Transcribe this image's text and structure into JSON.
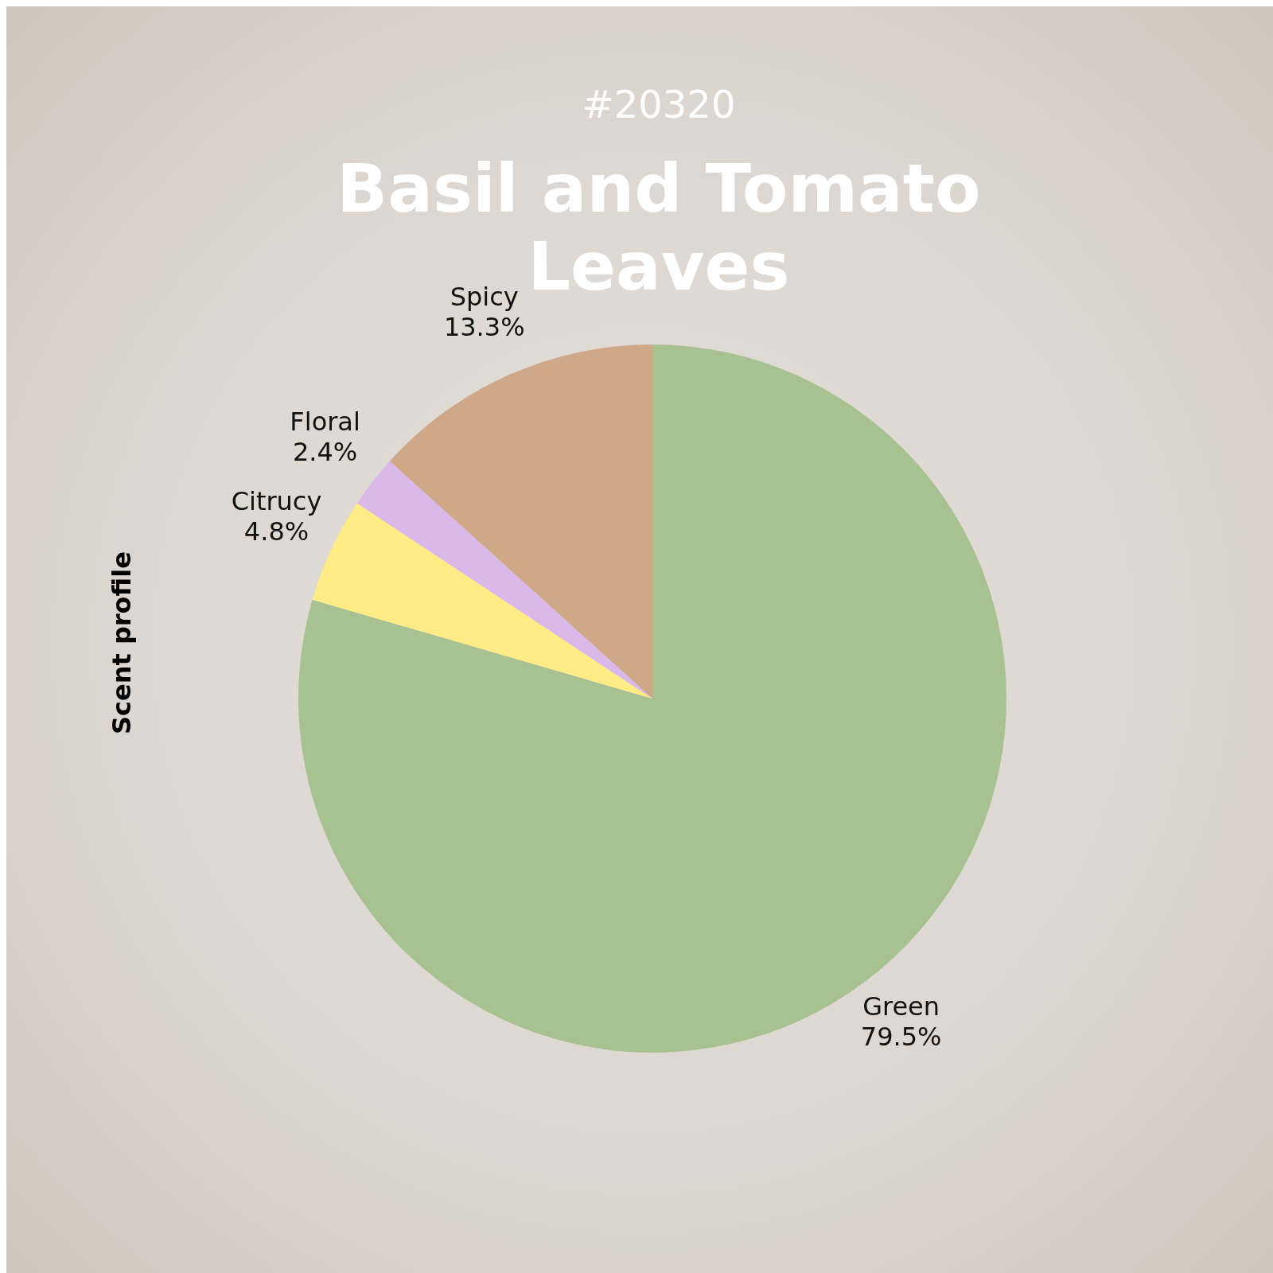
{
  "chart_data": {
    "type": "pie",
    "subtitle": "#20320",
    "title": "Basil and Tomato Leaves",
    "ylabel": "Scent profile",
    "categories": [
      "Green",
      "Citrucy",
      "Floral",
      "Spicy"
    ],
    "values": [
      79.5,
      4.8,
      2.4,
      13.3
    ],
    "value_labels": [
      "79.5%",
      "4.8%",
      "2.4%",
      "13.3%"
    ],
    "colors": [
      "#a8c191",
      "#ffec86",
      "#dab8e7",
      "#cfa88a"
    ]
  }
}
